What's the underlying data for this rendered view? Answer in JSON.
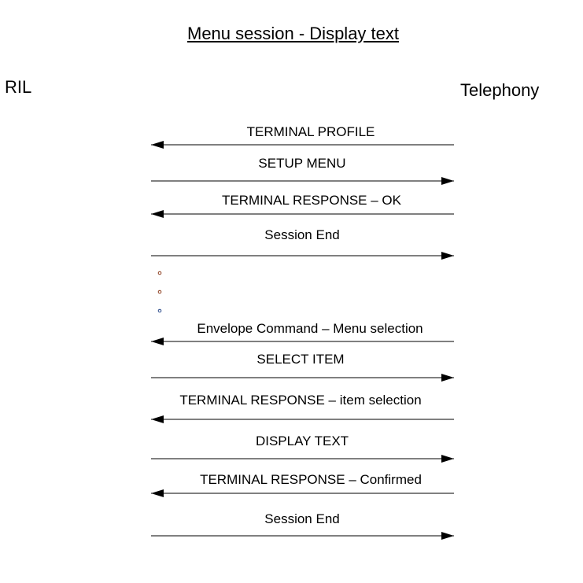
{
  "title": "Menu session - Display text",
  "actors": {
    "left": "RIL",
    "right": "Telephony"
  },
  "messages": [
    {
      "label": "TERMINAL PROFILE",
      "direction": "to-RIL"
    },
    {
      "label": "SETUP MENU",
      "direction": "to-Telephony"
    },
    {
      "label": "TERMINAL RESPONSE – OK",
      "direction": "to-RIL"
    },
    {
      "label": "Session End",
      "direction": "to-Telephony"
    },
    {
      "label": "Envelope Command – Menu selection",
      "direction": "to-RIL"
    },
    {
      "label": "SELECT ITEM",
      "direction": "to-Telephony"
    },
    {
      "label": "TERMINAL RESPONSE – item selection",
      "direction": "to-RIL"
    },
    {
      "label": "DISPLAY TEXT",
      "direction": "to-Telephony"
    },
    {
      "label": "TERMINAL RESPONSE – Confirmed",
      "direction": "to-RIL"
    },
    {
      "label": "Session End",
      "direction": "to-Telephony"
    }
  ],
  "ellipsis_dots": 3
}
